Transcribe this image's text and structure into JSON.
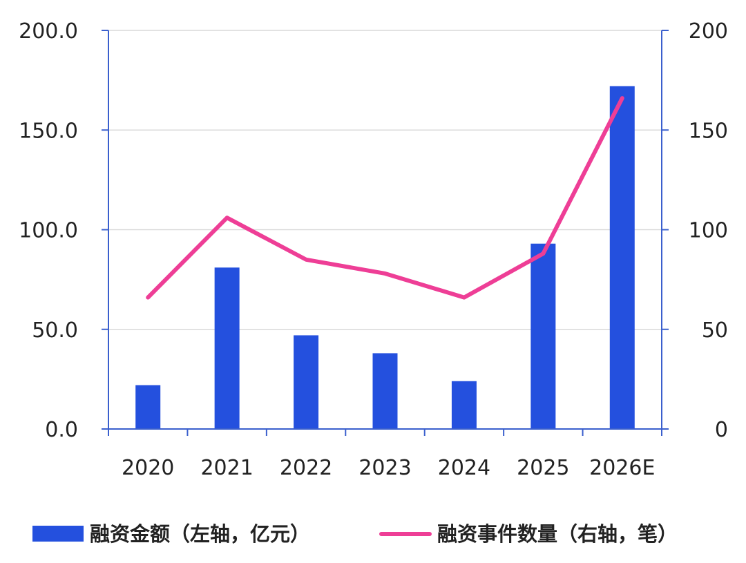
{
  "chart_data": {
    "type": "bar",
    "categories": [
      "2020",
      "2021",
      "2022",
      "2023",
      "2024",
      "2025",
      "2026E"
    ],
    "series": [
      {
        "name": "融资金额（左轴，亿元）",
        "type": "bar",
        "axis": "left",
        "color": "#2450DE",
        "values": [
          22,
          81,
          47,
          38,
          24,
          93,
          172
        ]
      },
      {
        "name": "融资事件数量（右轴，笔）",
        "type": "line",
        "axis": "right",
        "color": "#EE3E96",
        "values": [
          66,
          106,
          85,
          78,
          66,
          88,
          166
        ]
      }
    ],
    "y_left": {
      "ylim": [
        0,
        200
      ],
      "ticks": [
        "0.0",
        "50.0",
        "100.0",
        "150.0",
        "200.0"
      ]
    },
    "y_right": {
      "ylim": [
        0,
        200
      ],
      "ticks": [
        "0",
        "50",
        "100",
        "150",
        "200"
      ]
    },
    "grid": true,
    "legend_position": "bottom"
  }
}
